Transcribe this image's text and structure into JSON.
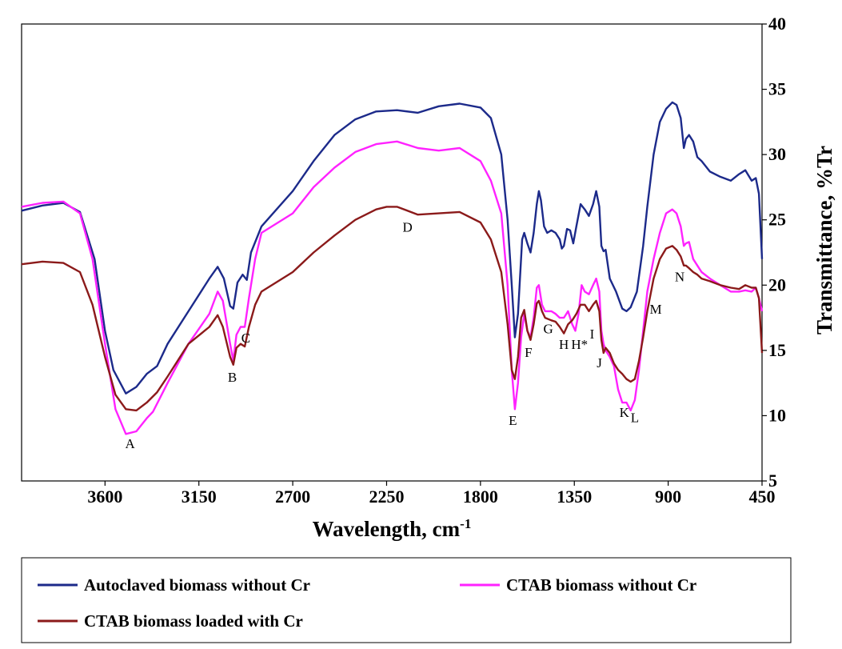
{
  "chart_data": {
    "type": "line",
    "xlabel": "Wavelength, cm",
    "xlabel_sup": "-1",
    "ylabel": "Transmittance, %Tr",
    "xlim": [
      4000,
      450
    ],
    "ylim": [
      5,
      40
    ],
    "x_reversed": true,
    "y_axis_side": "right",
    "x_ticks": [
      3600,
      3150,
      2700,
      2250,
      1800,
      1350,
      900,
      450
    ],
    "y_ticks": [
      5,
      10,
      15,
      20,
      25,
      30,
      35,
      40
    ],
    "grid": false,
    "legend_position": "bottom",
    "series": [
      {
        "name": "Autoclaved biomass without Cr",
        "color": "#1c2a8a",
        "points": [
          [
            4000,
            25.7
          ],
          [
            3900,
            26.1
          ],
          [
            3800,
            26.3
          ],
          [
            3720,
            25.6
          ],
          [
            3650,
            22.0
          ],
          [
            3600,
            16.5
          ],
          [
            3560,
            13.5
          ],
          [
            3500,
            11.7
          ],
          [
            3450,
            12.2
          ],
          [
            3400,
            13.2
          ],
          [
            3350,
            13.8
          ],
          [
            3300,
            15.5
          ],
          [
            3200,
            18.0
          ],
          [
            3100,
            20.5
          ],
          [
            3060,
            21.4
          ],
          [
            3030,
            20.5
          ],
          [
            3000,
            18.4
          ],
          [
            2985,
            18.2
          ],
          [
            2965,
            20.2
          ],
          [
            2940,
            20.8
          ],
          [
            2920,
            20.4
          ],
          [
            2900,
            22.5
          ],
          [
            2850,
            24.5
          ],
          [
            2700,
            27.2
          ],
          [
            2600,
            29.5
          ],
          [
            2500,
            31.5
          ],
          [
            2400,
            32.7
          ],
          [
            2300,
            33.3
          ],
          [
            2200,
            33.4
          ],
          [
            2100,
            33.2
          ],
          [
            2000,
            33.7
          ],
          [
            1900,
            33.9
          ],
          [
            1800,
            33.6
          ],
          [
            1750,
            32.8
          ],
          [
            1700,
            30.0
          ],
          [
            1670,
            25.0
          ],
          [
            1650,
            20.0
          ],
          [
            1635,
            16.0
          ],
          [
            1620,
            17.8
          ],
          [
            1600,
            23.5
          ],
          [
            1590,
            24.0
          ],
          [
            1575,
            23.2
          ],
          [
            1560,
            22.5
          ],
          [
            1545,
            24.0
          ],
          [
            1530,
            26.2
          ],
          [
            1520,
            27.2
          ],
          [
            1510,
            26.5
          ],
          [
            1495,
            24.5
          ],
          [
            1480,
            24.0
          ],
          [
            1460,
            24.2
          ],
          [
            1440,
            24.0
          ],
          [
            1420,
            23.5
          ],
          [
            1410,
            22.8
          ],
          [
            1400,
            23.0
          ],
          [
            1385,
            24.3
          ],
          [
            1370,
            24.2
          ],
          [
            1355,
            23.2
          ],
          [
            1340,
            24.5
          ],
          [
            1320,
            26.2
          ],
          [
            1300,
            25.8
          ],
          [
            1280,
            25.3
          ],
          [
            1260,
            26.2
          ],
          [
            1245,
            27.2
          ],
          [
            1230,
            26.0
          ],
          [
            1220,
            23.0
          ],
          [
            1210,
            22.6
          ],
          [
            1200,
            22.7
          ],
          [
            1180,
            20.5
          ],
          [
            1150,
            19.5
          ],
          [
            1120,
            18.2
          ],
          [
            1100,
            18.0
          ],
          [
            1080,
            18.3
          ],
          [
            1050,
            19.5
          ],
          [
            1020,
            23.0
          ],
          [
            1000,
            26.0
          ],
          [
            970,
            30.0
          ],
          [
            940,
            32.5
          ],
          [
            910,
            33.5
          ],
          [
            880,
            34.0
          ],
          [
            860,
            33.8
          ],
          [
            840,
            32.8
          ],
          [
            825,
            30.5
          ],
          [
            815,
            31.2
          ],
          [
            800,
            31.5
          ],
          [
            780,
            31.0
          ],
          [
            760,
            29.8
          ],
          [
            740,
            29.5
          ],
          [
            700,
            28.7
          ],
          [
            650,
            28.3
          ],
          [
            600,
            28.0
          ],
          [
            560,
            28.5
          ],
          [
            530,
            28.8
          ],
          [
            500,
            28.0
          ],
          [
            480,
            28.2
          ],
          [
            465,
            27.0
          ],
          [
            450,
            22.0
          ]
        ]
      },
      {
        "name": "CTAB biomass without Cr",
        "color": "#ff22ff",
        "points": [
          [
            4000,
            26.0
          ],
          [
            3900,
            26.3
          ],
          [
            3800,
            26.4
          ],
          [
            3720,
            25.5
          ],
          [
            3660,
            22.0
          ],
          [
            3600,
            15.5
          ],
          [
            3550,
            10.5
          ],
          [
            3500,
            8.6
          ],
          [
            3450,
            8.8
          ],
          [
            3400,
            9.8
          ],
          [
            3370,
            10.3
          ],
          [
            3300,
            12.5
          ],
          [
            3200,
            15.5
          ],
          [
            3100,
            17.8
          ],
          [
            3060,
            19.5
          ],
          [
            3035,
            18.8
          ],
          [
            3000,
            15.5
          ],
          [
            2985,
            14.2
          ],
          [
            2970,
            16.2
          ],
          [
            2950,
            16.8
          ],
          [
            2930,
            16.8
          ],
          [
            2910,
            19.0
          ],
          [
            2880,
            22.0
          ],
          [
            2850,
            24.0
          ],
          [
            2700,
            25.5
          ],
          [
            2600,
            27.5
          ],
          [
            2500,
            29.0
          ],
          [
            2400,
            30.2
          ],
          [
            2300,
            30.8
          ],
          [
            2200,
            31.0
          ],
          [
            2100,
            30.5
          ],
          [
            2000,
            30.3
          ],
          [
            1900,
            30.5
          ],
          [
            1800,
            29.5
          ],
          [
            1750,
            28.0
          ],
          [
            1700,
            25.5
          ],
          [
            1670,
            20.0
          ],
          [
            1650,
            13.5
          ],
          [
            1635,
            10.5
          ],
          [
            1620,
            12.5
          ],
          [
            1605,
            16.0
          ],
          [
            1590,
            17.8
          ],
          [
            1575,
            16.5
          ],
          [
            1560,
            16.0
          ],
          [
            1545,
            17.5
          ],
          [
            1530,
            19.8
          ],
          [
            1520,
            20.0
          ],
          [
            1505,
            18.5
          ],
          [
            1490,
            18.0
          ],
          [
            1460,
            18.0
          ],
          [
            1440,
            17.8
          ],
          [
            1420,
            17.5
          ],
          [
            1400,
            17.5
          ],
          [
            1380,
            18.0
          ],
          [
            1360,
            17.0
          ],
          [
            1345,
            16.5
          ],
          [
            1330,
            17.8
          ],
          [
            1315,
            20.0
          ],
          [
            1300,
            19.5
          ],
          [
            1280,
            19.3
          ],
          [
            1260,
            20.0
          ],
          [
            1245,
            20.5
          ],
          [
            1230,
            19.5
          ],
          [
            1220,
            16.5
          ],
          [
            1210,
            15.5
          ],
          [
            1200,
            15.0
          ],
          [
            1180,
            14.5
          ],
          [
            1160,
            13.8
          ],
          [
            1140,
            12.0
          ],
          [
            1120,
            11.0
          ],
          [
            1100,
            11.0
          ],
          [
            1080,
            10.4
          ],
          [
            1060,
            11.2
          ],
          [
            1040,
            13.5
          ],
          [
            1020,
            16.5
          ],
          [
            1000,
            19.5
          ],
          [
            970,
            22.0
          ],
          [
            940,
            24.0
          ],
          [
            910,
            25.5
          ],
          [
            880,
            25.8
          ],
          [
            860,
            25.5
          ],
          [
            840,
            24.5
          ],
          [
            825,
            23.0
          ],
          [
            815,
            23.2
          ],
          [
            800,
            23.3
          ],
          [
            780,
            22.0
          ],
          [
            760,
            21.5
          ],
          [
            740,
            21.0
          ],
          [
            700,
            20.5
          ],
          [
            650,
            20.0
          ],
          [
            600,
            19.5
          ],
          [
            560,
            19.5
          ],
          [
            530,
            19.6
          ],
          [
            500,
            19.5
          ],
          [
            480,
            19.8
          ],
          [
            465,
            19.0
          ],
          [
            450,
            18.0
          ]
        ]
      },
      {
        "name": "CTAB biomass loaded with Cr",
        "color": "#8b1a1a",
        "points": [
          [
            4000,
            21.6
          ],
          [
            3900,
            21.8
          ],
          [
            3800,
            21.7
          ],
          [
            3720,
            21.0
          ],
          [
            3660,
            18.5
          ],
          [
            3600,
            14.5
          ],
          [
            3550,
            11.6
          ],
          [
            3500,
            10.5
          ],
          [
            3450,
            10.4
          ],
          [
            3400,
            11.0
          ],
          [
            3350,
            11.8
          ],
          [
            3300,
            13.0
          ],
          [
            3200,
            15.5
          ],
          [
            3100,
            16.8
          ],
          [
            3060,
            17.7
          ],
          [
            3035,
            16.8
          ],
          [
            3000,
            14.5
          ],
          [
            2985,
            13.9
          ],
          [
            2970,
            15.2
          ],
          [
            2950,
            15.5
          ],
          [
            2930,
            15.3
          ],
          [
            2910,
            16.8
          ],
          [
            2880,
            18.5
          ],
          [
            2850,
            19.5
          ],
          [
            2700,
            21.0
          ],
          [
            2600,
            22.5
          ],
          [
            2500,
            23.8
          ],
          [
            2400,
            25.0
          ],
          [
            2300,
            25.8
          ],
          [
            2250,
            26.0
          ],
          [
            2200,
            26.0
          ],
          [
            2100,
            25.4
          ],
          [
            2000,
            25.5
          ],
          [
            1900,
            25.6
          ],
          [
            1800,
            24.8
          ],
          [
            1750,
            23.5
          ],
          [
            1700,
            21.0
          ],
          [
            1670,
            17.0
          ],
          [
            1650,
            13.5
          ],
          [
            1635,
            12.8
          ],
          [
            1620,
            14.5
          ],
          [
            1605,
            17.5
          ],
          [
            1590,
            18.1
          ],
          [
            1575,
            16.5
          ],
          [
            1560,
            15.8
          ],
          [
            1545,
            17.0
          ],
          [
            1530,
            18.6
          ],
          [
            1520,
            18.8
          ],
          [
            1505,
            18.0
          ],
          [
            1490,
            17.5
          ],
          [
            1460,
            17.3
          ],
          [
            1440,
            17.2
          ],
          [
            1420,
            16.8
          ],
          [
            1400,
            16.3
          ],
          [
            1380,
            17.0
          ],
          [
            1360,
            17.3
          ],
          [
            1340,
            17.8
          ],
          [
            1320,
            18.5
          ],
          [
            1300,
            18.5
          ],
          [
            1280,
            18.0
          ],
          [
            1260,
            18.5
          ],
          [
            1245,
            18.8
          ],
          [
            1230,
            18.0
          ],
          [
            1220,
            15.8
          ],
          [
            1210,
            14.8
          ],
          [
            1200,
            15.2
          ],
          [
            1180,
            14.8
          ],
          [
            1160,
            14.0
          ],
          [
            1140,
            13.5
          ],
          [
            1120,
            13.2
          ],
          [
            1100,
            12.8
          ],
          [
            1080,
            12.6
          ],
          [
            1060,
            12.8
          ],
          [
            1040,
            14.2
          ],
          [
            1020,
            16.0
          ],
          [
            1000,
            18.0
          ],
          [
            970,
            20.5
          ],
          [
            940,
            22.0
          ],
          [
            910,
            22.8
          ],
          [
            880,
            23.0
          ],
          [
            860,
            22.7
          ],
          [
            840,
            22.2
          ],
          [
            825,
            21.5
          ],
          [
            815,
            21.5
          ],
          [
            800,
            21.3
          ],
          [
            780,
            21.0
          ],
          [
            760,
            20.8
          ],
          [
            740,
            20.5
          ],
          [
            700,
            20.3
          ],
          [
            650,
            20.0
          ],
          [
            600,
            19.8
          ],
          [
            560,
            19.7
          ],
          [
            530,
            20.0
          ],
          [
            500,
            19.8
          ],
          [
            480,
            19.8
          ],
          [
            465,
            19.0
          ],
          [
            450,
            14.8
          ]
        ]
      }
    ],
    "annotations": [
      {
        "text": "A",
        "x": 3480,
        "y": 7.5
      },
      {
        "text": "B",
        "x": 2990,
        "y": 12.6
      },
      {
        "text": "C",
        "x": 2925,
        "y": 15.6
      },
      {
        "text": "D",
        "x": 2150,
        "y": 24.1
      },
      {
        "text": "E",
        "x": 1645,
        "y": 9.3
      },
      {
        "text": "F",
        "x": 1570,
        "y": 14.5
      },
      {
        "text": "G",
        "x": 1475,
        "y": 16.3
      },
      {
        "text": "H",
        "x": 1400,
        "y": 15.1
      },
      {
        "text": "H*",
        "x": 1325,
        "y": 15.1
      },
      {
        "text": "I",
        "x": 1265,
        "y": 15.9
      },
      {
        "text": "J",
        "x": 1230,
        "y": 13.7
      },
      {
        "text": "K",
        "x": 1110,
        "y": 9.9
      },
      {
        "text": "L",
        "x": 1060,
        "y": 9.5
      },
      {
        "text": "M",
        "x": 960,
        "y": 17.8
      },
      {
        "text": "N",
        "x": 845,
        "y": 20.3
      }
    ]
  }
}
